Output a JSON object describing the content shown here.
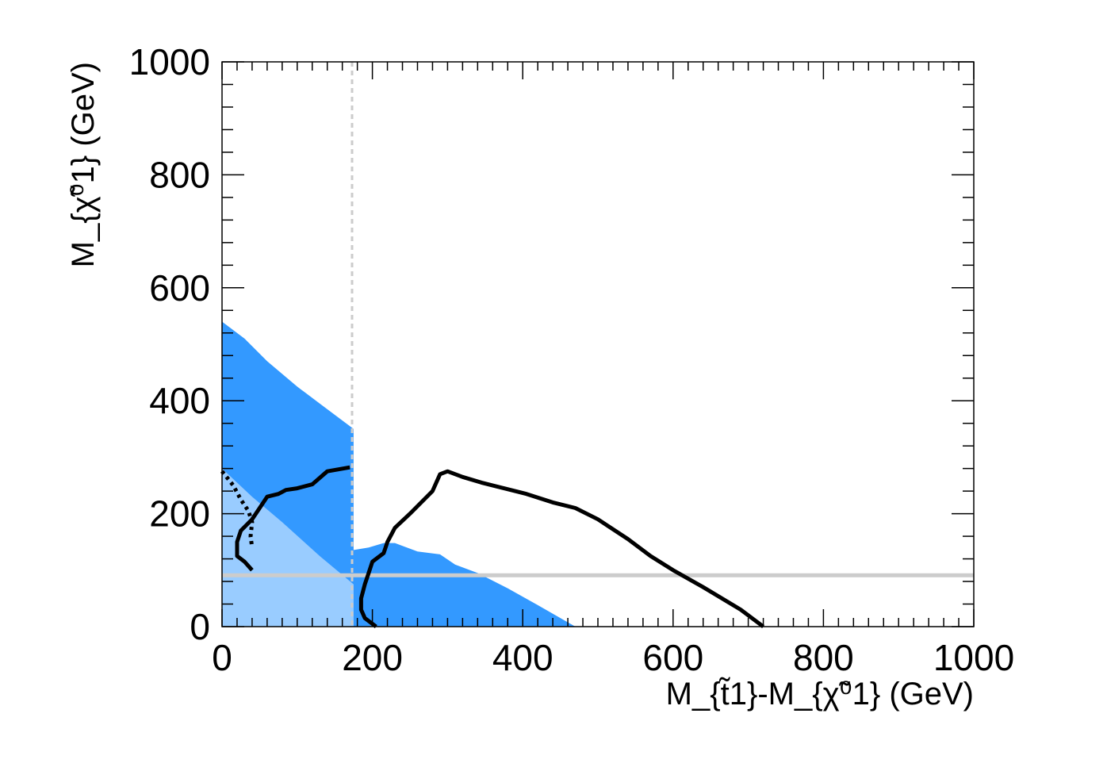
{
  "chart_data": {
    "type": "area",
    "xlabel": "M_{t̃1}-M_{χ̃⁰1} (GeV)",
    "ylabel": "M_{χ̃⁰1} (GeV)",
    "xlim": [
      0,
      1000
    ],
    "ylim": [
      0,
      1000
    ],
    "x_ticks": [
      "0",
      "200",
      "400",
      "600",
      "800",
      "1000"
    ],
    "y_ticks": [
      "0",
      "200",
      "400",
      "600",
      "800",
      "1000"
    ],
    "grid": false,
    "colors": {
      "dark_region": "#3399ff",
      "light_region": "#99ccff",
      "reference_line": "#cccccc",
      "contour": "#000000"
    },
    "series": [
      {
        "kind": "filled-region",
        "color": "dark_region",
        "points": [
          [
            0,
            540
          ],
          [
            30,
            510
          ],
          [
            60,
            470
          ],
          [
            100,
            425
          ],
          [
            140,
            385
          ],
          [
            175,
            350
          ],
          [
            175,
            0
          ],
          [
            0,
            0
          ]
        ]
      },
      {
        "kind": "filled-region",
        "color": "dark_region",
        "points": [
          [
            172,
            135
          ],
          [
            195,
            140
          ],
          [
            215,
            148
          ],
          [
            230,
            148
          ],
          [
            260,
            133
          ],
          [
            290,
            128
          ],
          [
            310,
            110
          ],
          [
            340,
            95
          ],
          [
            380,
            68
          ],
          [
            420,
            38
          ],
          [
            470,
            0
          ],
          [
            172,
            0
          ]
        ]
      },
      {
        "kind": "filled-region",
        "color": "light_region",
        "points": [
          [
            0,
            280
          ],
          [
            40,
            230
          ],
          [
            80,
            185
          ],
          [
            130,
            125
          ],
          [
            175,
            75
          ],
          [
            175,
            0
          ],
          [
            0,
            0
          ]
        ]
      },
      {
        "kind": "vertical-dashed",
        "color": "reference_line",
        "x": 173
      },
      {
        "kind": "horizontal",
        "color": "reference_line",
        "y": 91
      },
      {
        "kind": "solid-line",
        "color": "contour",
        "points": [
          [
            40,
            100
          ],
          [
            30,
            115
          ],
          [
            20,
            125
          ],
          [
            20,
            150
          ],
          [
            25,
            170
          ],
          [
            40,
            190
          ],
          [
            50,
            210
          ],
          [
            60,
            230
          ],
          [
            75,
            235
          ],
          [
            85,
            242
          ],
          [
            100,
            245
          ],
          [
            120,
            252
          ],
          [
            140,
            275
          ],
          [
            170,
            282
          ]
        ]
      },
      {
        "kind": "dotted-line",
        "color": "contour",
        "points": [
          [
            0,
            275
          ],
          [
            15,
            250
          ],
          [
            25,
            225
          ],
          [
            35,
            205
          ],
          [
            40,
            185
          ],
          [
            38,
            160
          ],
          [
            40,
            140
          ]
        ]
      },
      {
        "kind": "solid-line",
        "color": "contour",
        "points": [
          [
            205,
            0
          ],
          [
            190,
            15
          ],
          [
            185,
            30
          ],
          [
            185,
            50
          ],
          [
            190,
            75
          ],
          [
            195,
            95
          ],
          [
            200,
            115
          ],
          [
            215,
            130
          ],
          [
            220,
            150
          ],
          [
            230,
            175
          ],
          [
            250,
            200
          ],
          [
            265,
            220
          ],
          [
            280,
            240
          ],
          [
            290,
            270
          ],
          [
            300,
            275
          ],
          [
            320,
            265
          ],
          [
            345,
            255
          ],
          [
            375,
            245
          ],
          [
            405,
            235
          ],
          [
            440,
            220
          ],
          [
            470,
            210
          ],
          [
            500,
            190
          ],
          [
            540,
            155
          ],
          [
            570,
            125
          ],
          [
            600,
            100
          ],
          [
            640,
            70
          ],
          [
            690,
            30
          ],
          [
            720,
            0
          ]
        ]
      }
    ]
  }
}
